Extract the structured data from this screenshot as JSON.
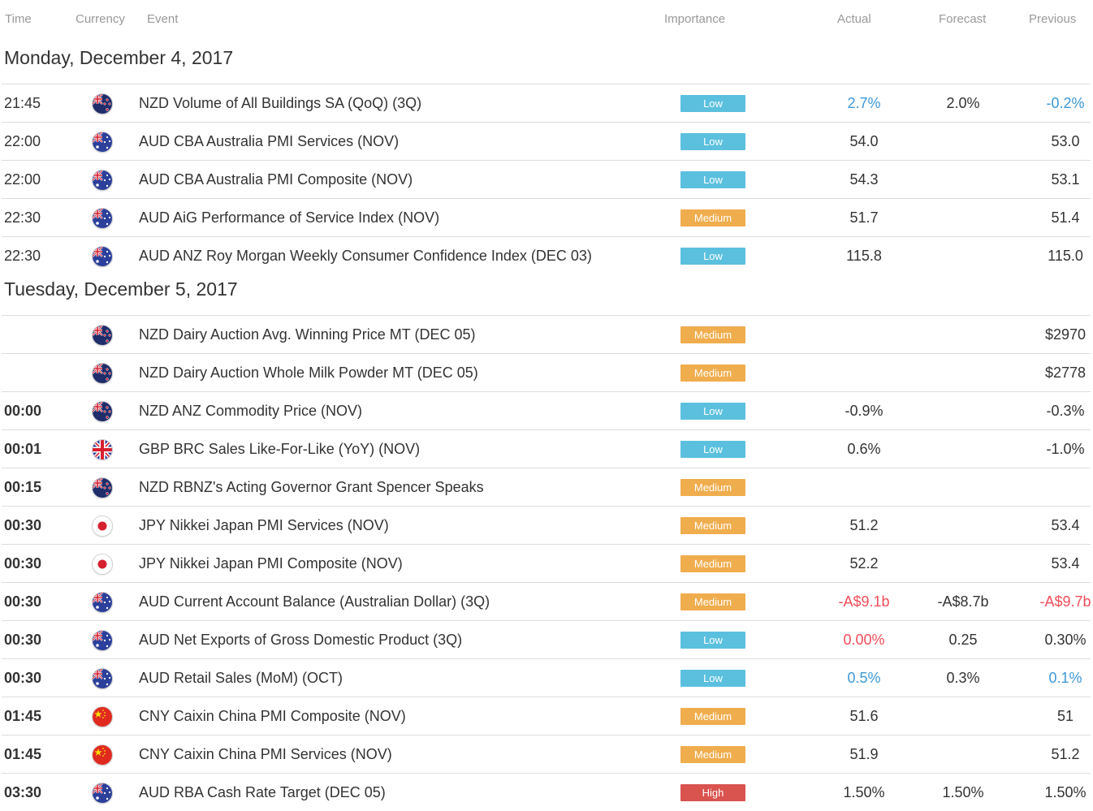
{
  "columns": {
    "time": "Time",
    "currency": "Currency",
    "event": "Event",
    "importance": "Importance",
    "actual": "Actual",
    "forecast": "Forecast",
    "previous": "Previous"
  },
  "colors": {
    "low": "#5bc0de",
    "medium": "#f0ad4e",
    "high": "#d9534f",
    "positive": "#3d99d6",
    "negative": "#f14d59"
  },
  "days": [
    {
      "title": "Monday, December 4, 2017",
      "rows": [
        {
          "time": "21:45",
          "flag": "nz-flag-icon",
          "event": "NZD Volume of All Buildings SA (QoQ) (3Q)",
          "importance": "Low",
          "actual": "2.7%",
          "actual_tone": "up",
          "forecast": "2.0%",
          "previous": "-0.2%",
          "previous_tone": "up"
        },
        {
          "time": "22:00",
          "flag": "au-flag-icon",
          "event": "AUD CBA Australia PMI Services (NOV)",
          "importance": "Low",
          "actual": "54.0",
          "forecast": "",
          "previous": "53.0"
        },
        {
          "time": "22:00",
          "flag": "au-flag-icon",
          "event": "AUD CBA Australia PMI Composite (NOV)",
          "importance": "Low",
          "actual": "54.3",
          "forecast": "",
          "previous": "53.1"
        },
        {
          "time": "22:30",
          "flag": "au-flag-icon",
          "event": "AUD AiG Performance of Service Index (NOV)",
          "importance": "Medium",
          "actual": "51.7",
          "forecast": "",
          "previous": "51.4"
        },
        {
          "time": "22:30",
          "flag": "au-flag-icon",
          "event": "AUD ANZ Roy Morgan Weekly Consumer Confidence Index (DEC 03)",
          "importance": "Low",
          "actual": "115.8",
          "forecast": "",
          "previous": "115.0"
        }
      ]
    },
    {
      "title": "Tuesday, December 5, 2017",
      "rows": [
        {
          "time": "",
          "flag": "nz-flag-icon",
          "event": "NZD Dairy Auction Avg. Winning Price MT (DEC 05)",
          "importance": "Medium",
          "actual": "",
          "forecast": "",
          "previous": "$2970"
        },
        {
          "time": "",
          "flag": "nz-flag-icon",
          "event": "NZD Dairy Auction Whole Milk Powder MT (DEC 05)",
          "importance": "Medium",
          "actual": "",
          "forecast": "",
          "previous": "$2778"
        },
        {
          "time": "00:00",
          "flag": "nz-flag-icon",
          "event": "NZD ANZ Commodity Price (NOV)",
          "importance": "Low",
          "actual": "-0.9%",
          "forecast": "",
          "previous": "-0.3%"
        },
        {
          "time": "00:01",
          "flag": "gb-flag-icon",
          "event": "GBP BRC Sales Like-For-Like (YoY) (NOV)",
          "importance": "Low",
          "actual": "0.6%",
          "forecast": "",
          "previous": "-1.0%"
        },
        {
          "time": "00:15",
          "flag": "nz-flag-icon",
          "event": "NZD RBNZ's Acting Governor Grant Spencer Speaks",
          "importance": "Medium",
          "actual": "",
          "forecast": "",
          "previous": ""
        },
        {
          "time": "00:30",
          "flag": "jp-flag-icon",
          "event": "JPY Nikkei Japan PMI Services (NOV)",
          "importance": "Medium",
          "actual": "51.2",
          "forecast": "",
          "previous": "53.4"
        },
        {
          "time": "00:30",
          "flag": "jp-flag-icon",
          "event": "JPY Nikkei Japan PMI Composite (NOV)",
          "importance": "Medium",
          "actual": "52.2",
          "forecast": "",
          "previous": "53.4"
        },
        {
          "time": "00:30",
          "flag": "au-flag-icon",
          "event": "AUD Current Account Balance (Australian Dollar) (3Q)",
          "importance": "Medium",
          "actual": "-A$9.1b",
          "actual_tone": "down",
          "forecast": "-A$8.7b",
          "previous": "-A$9.7b",
          "previous_tone": "down"
        },
        {
          "time": "00:30",
          "flag": "au-flag-icon",
          "event": "AUD Net Exports of Gross Domestic Product (3Q)",
          "importance": "Low",
          "actual": "0.00%",
          "actual_tone": "down",
          "forecast": "0.25",
          "previous": "0.30%"
        },
        {
          "time": "00:30",
          "flag": "au-flag-icon",
          "event": "AUD Retail Sales (MoM) (OCT)",
          "importance": "Low",
          "actual": "0.5%",
          "actual_tone": "up",
          "forecast": "0.3%",
          "previous": "0.1%",
          "previous_tone": "up"
        },
        {
          "time": "01:45",
          "flag": "cn-flag-icon",
          "event": "CNY Caixin China PMI Composite (NOV)",
          "importance": "Medium",
          "actual": "51.6",
          "forecast": "",
          "previous": "51"
        },
        {
          "time": "01:45",
          "flag": "cn-flag-icon",
          "event": "CNY Caixin China PMI Services (NOV)",
          "importance": "Medium",
          "actual": "51.9",
          "forecast": "",
          "previous": "51.2"
        },
        {
          "time": "03:30",
          "flag": "au-flag-icon",
          "event": "AUD RBA Cash Rate Target (DEC 05)",
          "importance": "High",
          "actual": "1.50%",
          "forecast": "1.50%",
          "previous": "1.50%"
        }
      ]
    }
  ]
}
